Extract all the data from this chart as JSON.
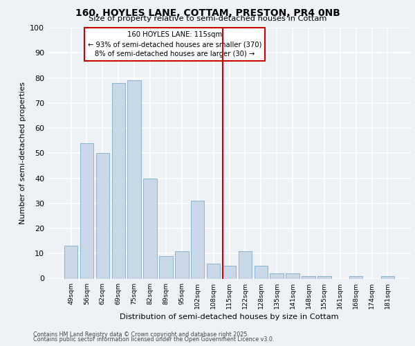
{
  "title": "160, HOYLES LANE, COTTAM, PRESTON, PR4 0NB",
  "subtitle": "Size of property relative to semi-detached houses in Cottam",
  "xlabel": "Distribution of semi-detached houses by size in Cottam",
  "ylabel": "Number of semi-detached properties",
  "categories": [
    "49sqm",
    "56sqm",
    "62sqm",
    "69sqm",
    "75sqm",
    "82sqm",
    "89sqm",
    "95sqm",
    "102sqm",
    "108sqm",
    "115sqm",
    "122sqm",
    "128sqm",
    "135sqm",
    "141sqm",
    "148sqm",
    "155sqm",
    "161sqm",
    "168sqm",
    "174sqm",
    "181sqm"
  ],
  "values": [
    13,
    54,
    50,
    78,
    79,
    40,
    9,
    11,
    31,
    6,
    5,
    11,
    5,
    2,
    2,
    1,
    1,
    0,
    1,
    0,
    1
  ],
  "bar_color": "#c8d8e8",
  "bar_edge_color": "#7aadcc",
  "vline_color": "#cc0000",
  "annotation_box_color": "#cc0000",
  "annotation_title": "160 HOYLES LANE: 115sqm",
  "annotation_line1": "← 93% of semi-detached houses are smaller (370)",
  "annotation_line2": "8% of semi-detached houses are larger (30) →",
  "ylim": [
    0,
    100
  ],
  "yticks": [
    0,
    10,
    20,
    30,
    40,
    50,
    60,
    70,
    80,
    90,
    100
  ],
  "background_color": "#eef2f7",
  "grid_color": "#ffffff",
  "footer1": "Contains HM Land Registry data © Crown copyright and database right 2025.",
  "footer2": "Contains public sector information licensed under the Open Government Licence v3.0."
}
